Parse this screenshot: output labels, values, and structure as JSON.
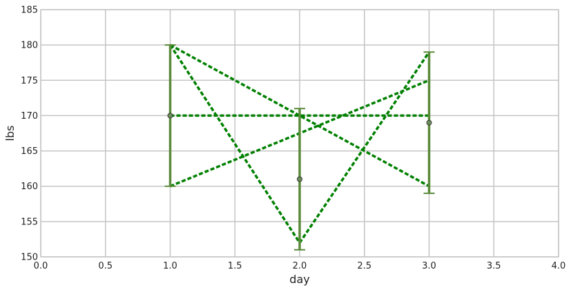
{
  "chart_data": {
    "type": "line",
    "title": "",
    "xlabel": "day",
    "ylabel": "lbs",
    "xlim": [
      0.0,
      4.0
    ],
    "ylim": [
      150,
      185
    ],
    "xticks": [
      "0.0",
      "0.5",
      "1.0",
      "1.5",
      "2.0",
      "2.5",
      "3.0",
      "3.5",
      "4.0"
    ],
    "yticks": [
      "150",
      "155",
      "160",
      "165",
      "170",
      "175",
      "180",
      "185"
    ],
    "grid": true,
    "legend": "none",
    "line_color": "#008000",
    "errorbar_color": "#5a8a3a",
    "series": [
      {
        "x": [
          1,
          2,
          3
        ],
        "values": [
          180,
          170,
          160
        ]
      },
      {
        "x": [
          1,
          2,
          3
        ],
        "values": [
          170,
          170,
          170
        ]
      },
      {
        "x": [
          1,
          2,
          3
        ],
        "values": [
          160,
          167.5,
          175
        ]
      },
      {
        "x": [
          1,
          2,
          3
        ],
        "values": [
          180,
          152,
          179
        ]
      }
    ],
    "errorbars": [
      {
        "x": 1,
        "mean": 170,
        "low": 160,
        "high": 180
      },
      {
        "x": 2,
        "mean": 161,
        "low": 151,
        "high": 171
      },
      {
        "x": 3,
        "mean": 169,
        "low": 159,
        "high": 179
      }
    ]
  }
}
